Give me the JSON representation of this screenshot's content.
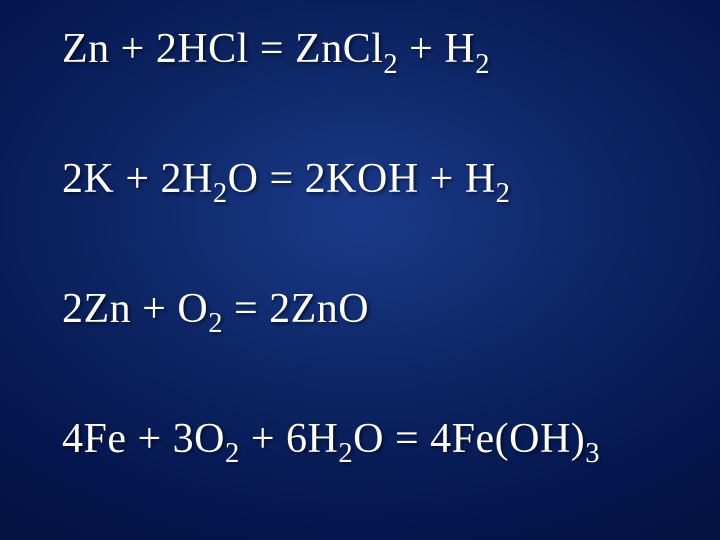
{
  "slide": {
    "background_gradient": [
      "#1a3a8a",
      "#0d2563",
      "#051750",
      "#02103c"
    ],
    "text_color": "#ffffff",
    "font_family": "Times New Roman",
    "font_size_pt": 32,
    "equations": [
      {
        "tokens": [
          {
            "t": "Zn + 2HCl = ZnCl"
          },
          {
            "t": "2",
            "sub": true
          },
          {
            "t": " + H"
          },
          {
            "t": "2",
            "sub": true
          }
        ]
      },
      {
        "tokens": [
          {
            "t": "2K + 2H"
          },
          {
            "t": "2",
            "sub": true
          },
          {
            "t": "O = 2KOH + H"
          },
          {
            "t": "2",
            "sub": true
          }
        ]
      },
      {
        "tokens": [
          {
            "t": "2Zn + O"
          },
          {
            "t": "2",
            "sub": true
          },
          {
            "t": " = 2ZnO"
          }
        ]
      },
      {
        "tokens": [
          {
            "t": "4Fe + 3O"
          },
          {
            "t": "2",
            "sub": true
          },
          {
            "t": " + 6H"
          },
          {
            "t": "2",
            "sub": true
          },
          {
            "t": "O = 4Fe(OH)"
          },
          {
            "t": "3",
            "sub": true
          }
        ]
      }
    ]
  }
}
